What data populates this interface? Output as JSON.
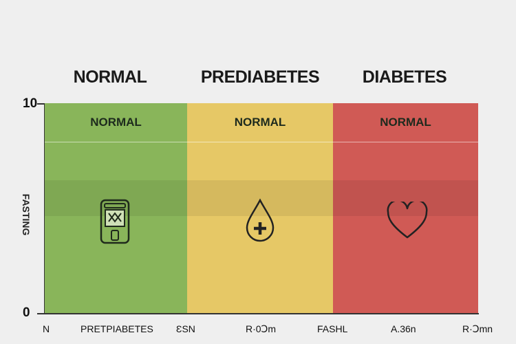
{
  "headers": [
    "NORMAL",
    "PREDIABETES",
    "DIABETES"
  ],
  "y_axis": {
    "label": "FASTING",
    "top_tick": "10",
    "bottom_tick": "0"
  },
  "zones": [
    {
      "label": "NORMAL",
      "color": "#89b55a",
      "icon": "glucose-meter-icon"
    },
    {
      "label": "NORMAL",
      "color": "#e6c866",
      "icon": "blood-drop-plus-icon"
    },
    {
      "label": "NORMAL",
      "color": "#d05a55",
      "icon": "heart-icon"
    }
  ],
  "x_axis": {
    "ticks": [
      "N",
      "PRETPIABETES",
      "ƐSN",
      "R·0Ↄm",
      "FASHL",
      "A.36n",
      "R·Ↄmn"
    ]
  }
}
